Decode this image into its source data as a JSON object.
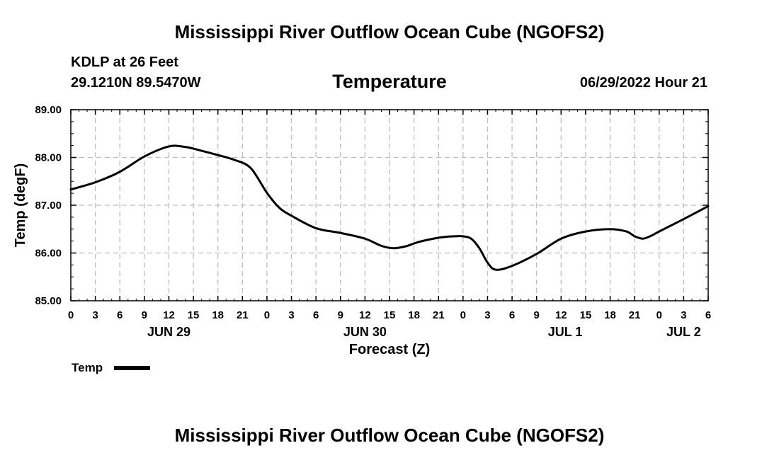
{
  "header": {
    "main_title": "Mississippi River Outflow Ocean Cube (NGOFS2)",
    "station": "KDLP at 26 Feet",
    "coords": "29.1210N  89.5470W",
    "variable_title": "Temperature",
    "datetime": "06/29/2022 Hour 21"
  },
  "footer": {
    "title": "Mississippi River Outflow Ocean Cube (NGOFS2)"
  },
  "chart_data": {
    "type": "line",
    "title": "Temperature",
    "xlabel": "Forecast (Z)",
    "ylabel": "Temp (degF)",
    "xlim": [
      0,
      78
    ],
    "ylim": [
      85.0,
      89.0
    ],
    "grid": true,
    "x_tick_values": [
      0,
      3,
      6,
      9,
      12,
      15,
      18,
      21,
      24,
      27,
      30,
      33,
      36,
      39,
      42,
      45,
      48,
      51,
      54,
      57,
      60,
      63,
      66,
      69,
      72,
      75,
      78
    ],
    "x_tick_labels": [
      "0",
      "3",
      "6",
      "9",
      "12",
      "15",
      "18",
      "21",
      "0",
      "3",
      "6",
      "9",
      "12",
      "15",
      "18",
      "21",
      "0",
      "3",
      "6",
      "9",
      "12",
      "15",
      "18",
      "21",
      "0",
      "3",
      "6"
    ],
    "y_tick_values": [
      85.0,
      86.0,
      87.0,
      88.0,
      89.0
    ],
    "y_tick_labels": [
      "85.00",
      "86.00",
      "87.00",
      "88.00",
      "89.00"
    ],
    "date_labels": [
      {
        "label": "JUN 29",
        "x": 12
      },
      {
        "label": "JUN 30",
        "x": 36
      },
      {
        "label": "JUL 1",
        "x": 60.5
      },
      {
        "label": "JUL 2",
        "x": 75
      }
    ],
    "legend": {
      "label": "Temp",
      "placement": "bottom-left"
    },
    "series": [
      {
        "name": "Temp",
        "color": "#000000",
        "x": [
          0,
          3,
          6,
          9,
          12,
          14,
          16,
          18,
          20,
          22,
          24,
          25.5,
          27,
          30,
          33,
          36,
          38,
          39.5,
          41,
          42,
          43,
          45,
          46,
          47,
          48,
          49,
          50,
          51,
          52,
          54,
          57,
          60,
          63,
          66,
          68,
          69,
          70,
          71,
          72,
          75,
          78
        ],
        "values": [
          87.33,
          87.48,
          87.7,
          88.02,
          88.23,
          88.22,
          88.14,
          88.05,
          87.95,
          87.78,
          87.26,
          86.95,
          86.78,
          86.52,
          86.42,
          86.3,
          86.15,
          86.1,
          86.14,
          86.2,
          86.25,
          86.32,
          86.34,
          86.35,
          86.35,
          86.3,
          86.1,
          85.8,
          85.65,
          85.73,
          85.98,
          86.3,
          86.45,
          86.5,
          86.45,
          86.35,
          86.3,
          86.36,
          86.45,
          86.71,
          86.98
        ]
      }
    ]
  }
}
